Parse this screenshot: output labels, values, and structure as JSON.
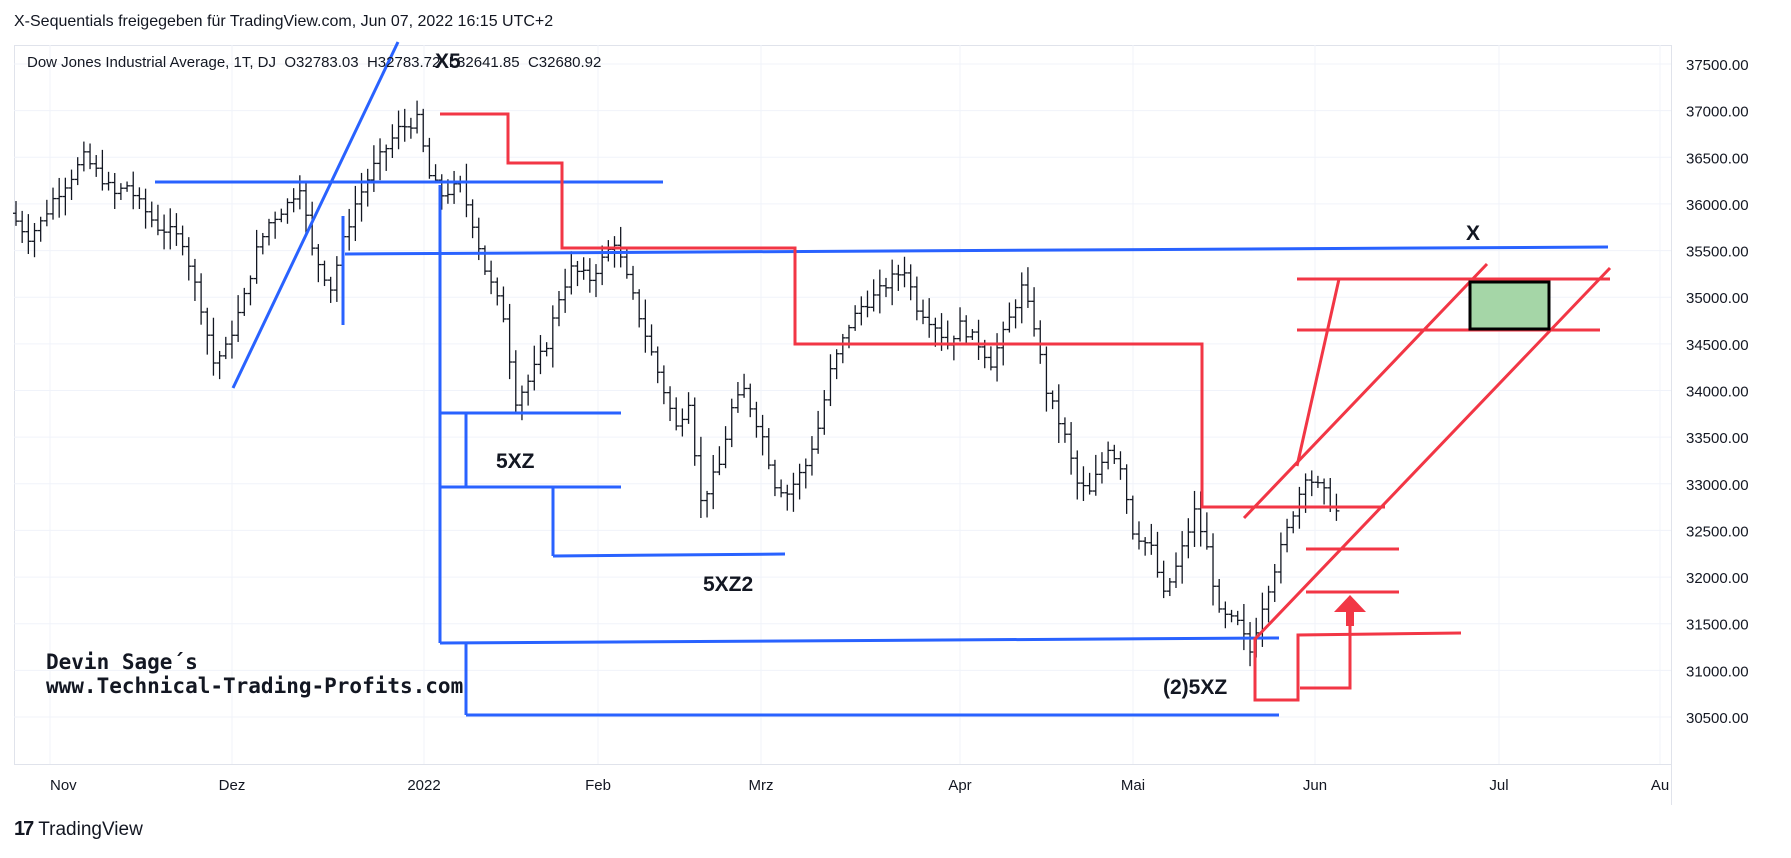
{
  "header": {
    "title": "X-Sequentials freigegeben für TradingView.com, Jun 07, 2022 16:15 UTC+2"
  },
  "legend": {
    "symbol": "Dow Jones Industrial Average, 1T, DJ",
    "open": "O32783.03",
    "high": "H32783.72",
    "low": "L32641.85",
    "close": "C32680.92"
  },
  "author": {
    "line1": "Devin Sage´s",
    "line2": "www.Technical-Trading-Profits.com"
  },
  "footer": {
    "logo": "17",
    "brand": "TradingView"
  },
  "annotations": {
    "x5": "X5",
    "x": "X",
    "fxz": "5XZ",
    "fxz2": "5XZ2",
    "fxz_2": "(2)5XZ"
  },
  "colors": {
    "blue": "#2962ff",
    "red": "#f23645",
    "box_fill": "#a5d6a7",
    "bars": "#131722"
  },
  "chart_data": {
    "type": "ohlc",
    "title": "Dow Jones Industrial Average, 1T, DJ",
    "ylim": [
      30000,
      37700
    ],
    "y_ticks": [
      "37500.00",
      "37000.00",
      "36500.00",
      "36000.00",
      "35500.00",
      "35000.00",
      "34500.00",
      "34000.00",
      "33500.00",
      "33000.00",
      "32500.00",
      "32000.00",
      "31500.00",
      "31000.00",
      "30500.00"
    ],
    "x_ticks": [
      "Nov",
      "Dez",
      "2022",
      "Feb",
      "Mrz",
      "Apr",
      "Mai",
      "Jun",
      "Jul",
      "Au"
    ],
    "last_bar": {
      "open": 32783.03,
      "high": 32783.72,
      "low": 32641.85,
      "close": 32680.92
    },
    "price_path": [
      35900,
      35650,
      35800,
      36050,
      36300,
      36500,
      36350,
      36100,
      36200,
      36000,
      35750,
      35700,
      35600,
      34900,
      34300,
      34450,
      35000,
      35500,
      35800,
      36000,
      36200,
      35500,
      35100,
      35600,
      36000,
      36400,
      36600,
      36800,
      36900,
      36300,
      36100,
      36200,
      35800,
      35300,
      34800,
      33900,
      34100,
      34500,
      35000,
      35300,
      35200,
      35400,
      35600,
      35000,
      34600,
      34200,
      33600,
      33900,
      32800,
      33200,
      33800,
      34000,
      33500,
      33000,
      32900,
      33200,
      33600,
      34200,
      34700,
      34900,
      35000,
      35200,
      35300,
      34900,
      34700,
      34500,
      34700,
      34500,
      34300,
      34600,
      35100,
      34700,
      34000,
      33500,
      33000,
      32900,
      33400,
      33200,
      32500,
      32300,
      31800,
      32100,
      32700,
      32300,
      31600,
      31500,
      31200,
      31700,
      32300,
      32700,
      33100,
      32900,
      32700
    ],
    "volume_note": ""
  }
}
